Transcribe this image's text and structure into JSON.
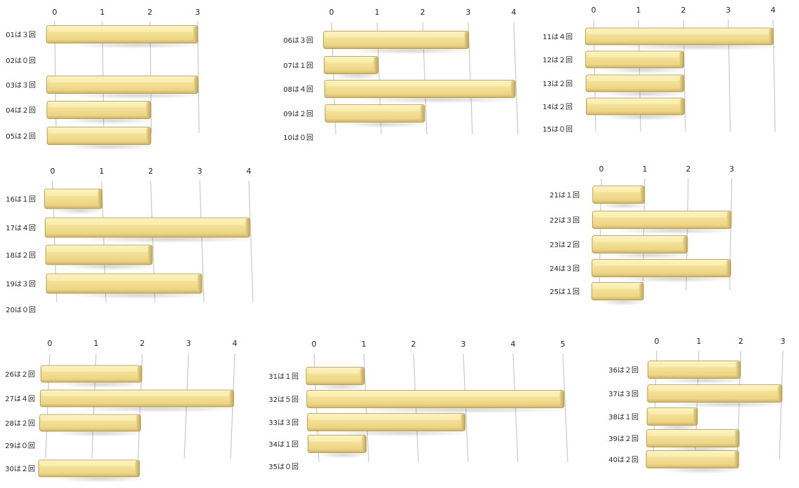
{
  "chart_data": [
    {
      "type": "bar",
      "orientation": "horizontal",
      "categories": [
        "01は３回",
        "02は０回",
        "03は３回",
        "04は２回",
        "05は２回"
      ],
      "values": [
        3,
        0,
        3,
        2,
        2
      ],
      "ticks": [
        "0",
        "1",
        "2",
        "3"
      ],
      "xlim": [
        0,
        3
      ]
    },
    {
      "type": "bar",
      "orientation": "horizontal",
      "categories": [
        "06は３回",
        "07は１回",
        "08は４回",
        "09は２回",
        "10は０回"
      ],
      "values": [
        3,
        1,
        4,
        2,
        0
      ],
      "ticks": [
        "0",
        "1",
        "2",
        "3",
        "4"
      ],
      "xlim": [
        0,
        4
      ]
    },
    {
      "type": "bar",
      "orientation": "horizontal",
      "categories": [
        "11は４回",
        "12は２回",
        "13は２回",
        "14は２回",
        "15は０回"
      ],
      "values": [
        4,
        2,
        2,
        2,
        0
      ],
      "ticks": [
        "0",
        "1",
        "2",
        "3",
        "4"
      ],
      "xlim": [
        0,
        4
      ]
    },
    {
      "type": "bar",
      "orientation": "horizontal",
      "categories": [
        "16は１回",
        "17は４回",
        "18は２回",
        "19は３回",
        "20は０回"
      ],
      "values": [
        1,
        4,
        2,
        3,
        0
      ],
      "ticks": [
        "0",
        "1",
        "2",
        "3",
        "4"
      ],
      "xlim": [
        0,
        4
      ]
    },
    {
      "type": "bar",
      "orientation": "horizontal",
      "categories": [
        "21は１回",
        "22は３回",
        "23は２回",
        "24は３回",
        "25は１回"
      ],
      "values": [
        1,
        3,
        2,
        3,
        1
      ],
      "ticks": [
        "0",
        "1",
        "2",
        "3"
      ],
      "xlim": [
        0,
        3
      ]
    },
    {
      "type": "bar",
      "orientation": "horizontal",
      "categories": [
        "26は２回",
        "27は４回",
        "28は２回",
        "29は０回",
        "30は２回"
      ],
      "values": [
        2,
        4,
        2,
        0,
        2
      ],
      "ticks": [
        "0",
        "1",
        "2",
        "3",
        "4"
      ],
      "xlim": [
        0,
        4
      ]
    },
    {
      "type": "bar",
      "orientation": "horizontal",
      "categories": [
        "31は１回",
        "32は５回",
        "33は３回",
        "34は１回",
        "35は０回"
      ],
      "values": [
        1,
        5,
        3,
        1,
        0
      ],
      "ticks": [
        "0",
        "1",
        "2",
        "3",
        "4",
        "5"
      ],
      "xlim": [
        0,
        5
      ]
    },
    {
      "type": "bar",
      "orientation": "horizontal",
      "categories": [
        "36は２回",
        "37は３回",
        "38は１回",
        "39は２回",
        "40は２回"
      ],
      "values": [
        2,
        3,
        1,
        2,
        2
      ],
      "ticks": [
        "0",
        "1",
        "2",
        "3"
      ],
      "xlim": [
        0,
        3
      ]
    }
  ],
  "colors": {
    "bar_light": "#fbf0b6",
    "bar_main": "#f2dc8a",
    "bar_dark": "#c9ad5e",
    "bar_edge": "#a88f44",
    "grid": "#c9c9c9",
    "text": "#222222"
  }
}
